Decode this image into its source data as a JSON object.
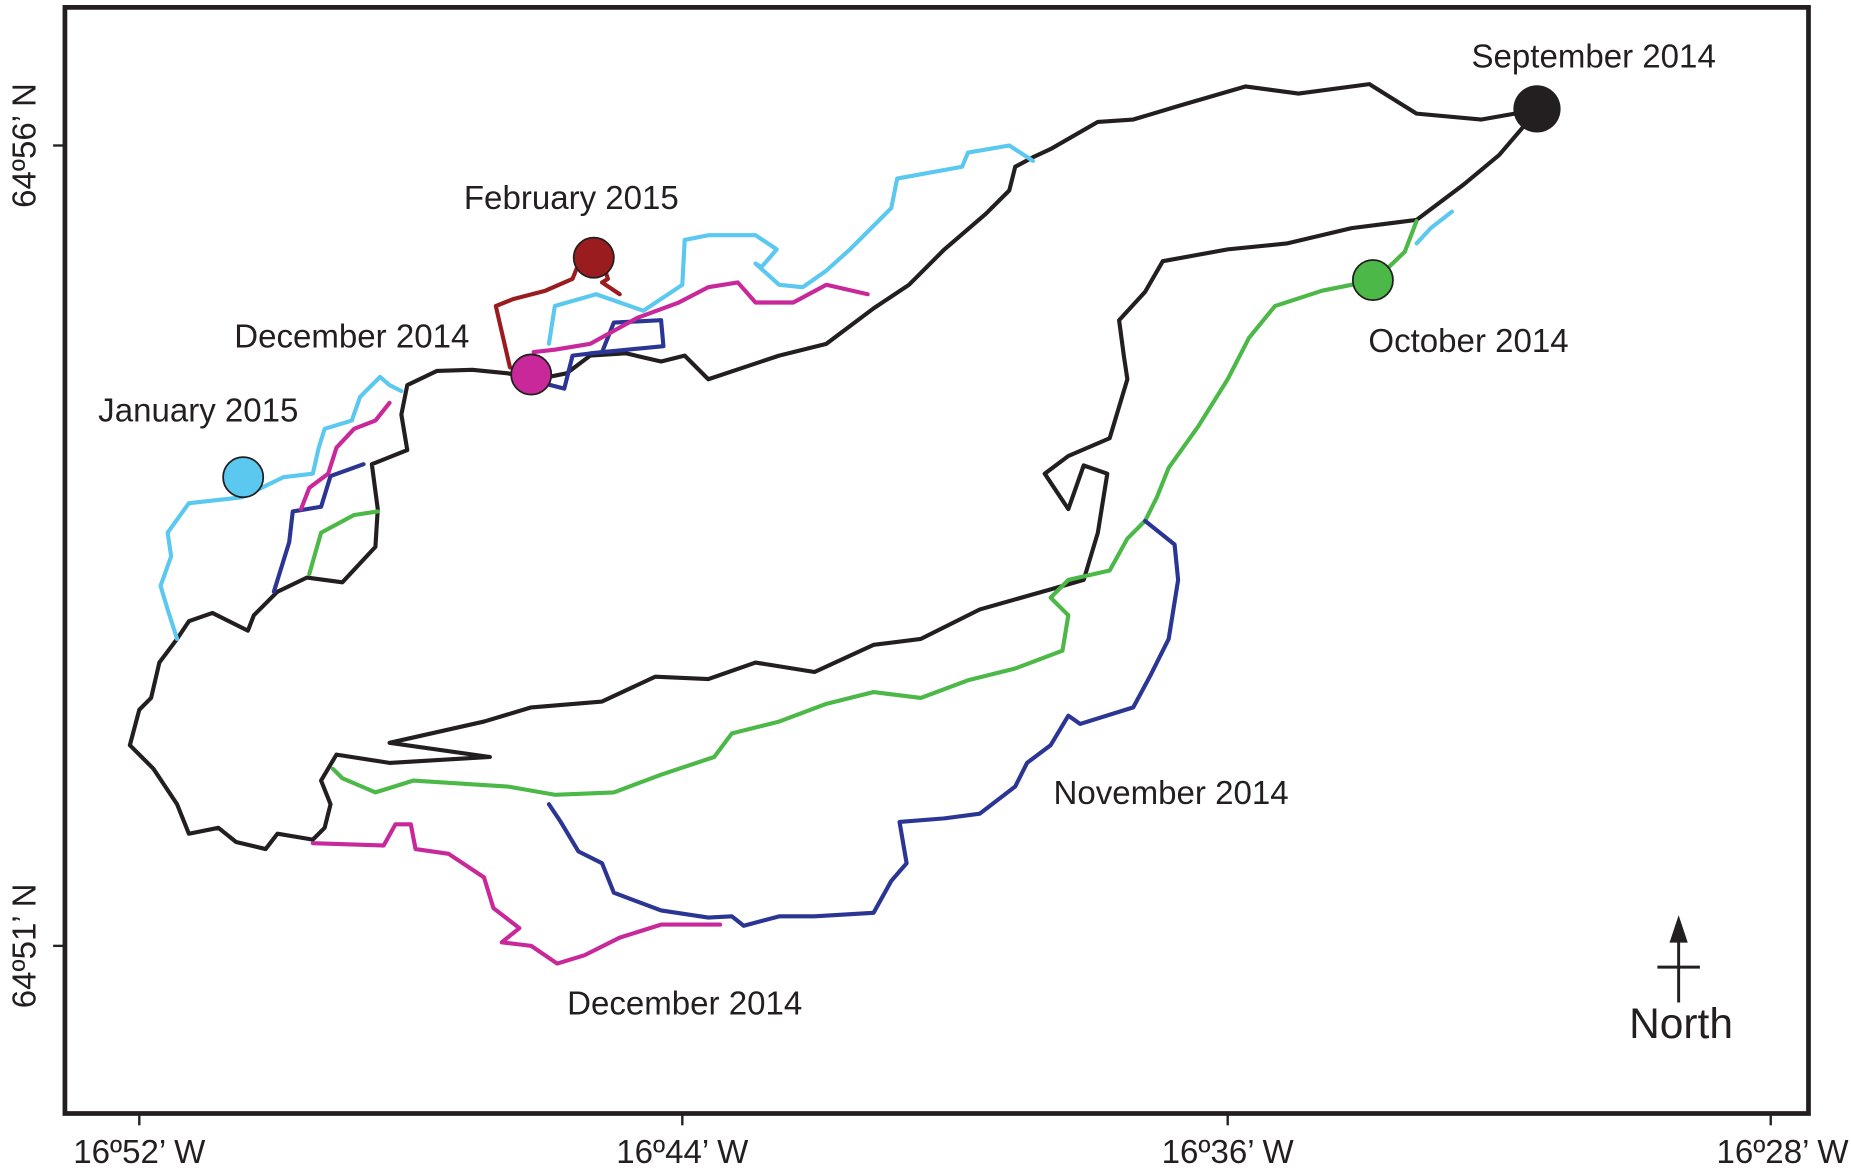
{
  "map": {
    "labels": [
      {
        "text": "September 2014",
        "color": "#231f20"
      },
      {
        "text": "February 2015",
        "color": "#9b1c1f"
      },
      {
        "text": "December 2014",
        "color": "#c8289a"
      },
      {
        "text": "January 2015",
        "color": "#5bc8f0"
      },
      {
        "text": "October 2014",
        "color": "#4cb848"
      },
      {
        "text": "November 2014",
        "color": "#2b3594"
      },
      {
        "text": "December 2014",
        "color": "#c8289a"
      }
    ],
    "x_axis": [
      "16º52’ W",
      "16º44’ W",
      "16º36’ W",
      "16º28’ W"
    ],
    "y_axis": [
      "64º56’ N",
      "64º51’ N"
    ],
    "north": "North"
  }
}
